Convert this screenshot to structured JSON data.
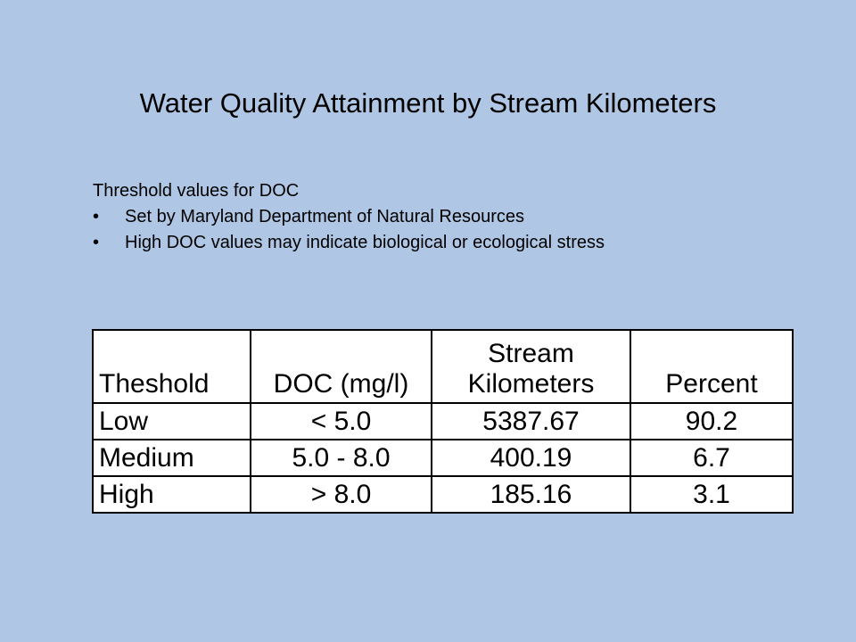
{
  "slide": {
    "title": "Water Quality Attainment by Stream Kilometers",
    "intro": "Threshold values for DOC",
    "bullets": [
      "Set by Maryland Department of Natural Resources",
      "High DOC values may indicate biological or ecological stress"
    ],
    "bullet_glyph": "•"
  },
  "table": {
    "headers": {
      "threshold": "Theshold",
      "doc": "DOC (mg/l)",
      "stream_line1": "Stream",
      "stream_line2": "Kilometers",
      "percent": "Percent"
    },
    "rows": [
      {
        "threshold": "Low",
        "doc": "< 5.0",
        "km": "5387.67",
        "percent": "90.2"
      },
      {
        "threshold": "Medium",
        "doc": "5.0 - 8.0",
        "km": "400.19",
        "percent": "6.7"
      },
      {
        "threshold": "High",
        "doc": "> 8.0",
        "km": "185.16",
        "percent": "3.1"
      }
    ]
  },
  "colors": {
    "background": "#afc6e4",
    "table_background": "#ffffff",
    "text": "#000000"
  }
}
